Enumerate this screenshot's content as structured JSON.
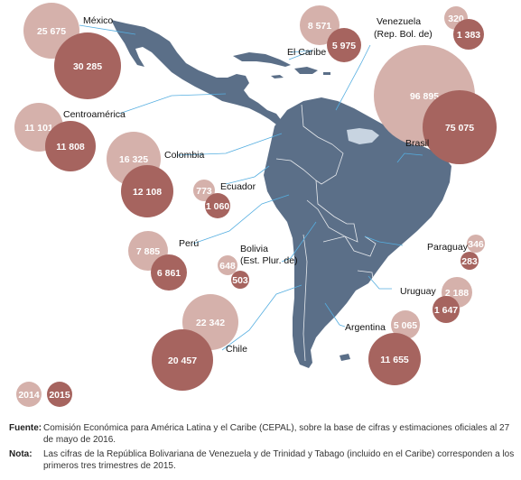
{
  "colors": {
    "y2014": "#d5b1ab",
    "y2015": "#a6645f",
    "land": "#5b6f88",
    "land_light": "#c8d4e1",
    "leader": "#55aee0"
  },
  "legend": {
    "y2014": "2014",
    "y2015": "2015"
  },
  "countries": {
    "mexico": {
      "name": "México",
      "v2014": "25 675",
      "v2015": "30 285"
    },
    "centroamerica": {
      "name": "Centroamérica",
      "v2014": "11 101",
      "v2015": "11 808"
    },
    "el_caribe": {
      "name": "El Caribe",
      "v2014": "8 571",
      "v2015": "5 975"
    },
    "venezuela": {
      "name_line1": "Venezuela",
      "name_line2": "(Rep. Bol. de)",
      "v2014": "320",
      "v2015": "1 383"
    },
    "colombia": {
      "name": "Colombia",
      "v2014": "16 325",
      "v2015": "12 108"
    },
    "ecuador": {
      "name": "Ecuador",
      "v2014": "773",
      "v2015": "1 060"
    },
    "brasil": {
      "name": "Brasil",
      "v2014": "96 895",
      "v2015": "75 075"
    },
    "peru": {
      "name": "Perú",
      "v2014": "7 885",
      "v2015": "6 861"
    },
    "bolivia": {
      "name_line1": "Bolivia",
      "name_line2": "(Est. Plur. de)",
      "v2014": "648",
      "v2015": "503"
    },
    "paraguay": {
      "name": "Paraguay",
      "v2014": "346",
      "v2015": "283"
    },
    "uruguay": {
      "name": "Uruguay",
      "v2014": "2 188",
      "v2015": "1 647"
    },
    "chile": {
      "name": "Chile",
      "v2014": "22 342",
      "v2015": "20 457"
    },
    "argentina": {
      "name": "Argentina",
      "v2014": "5 065",
      "v2015": "11 655"
    }
  },
  "notes": {
    "fuente_label": "Fuente",
    "fuente_text": "Comisión Económica para América Latina y el Caribe (CEPAL), sobre la base de cifras y estimaciones oficiales al 27 de mayo de 2016.",
    "nota_label": "Nota",
    "nota_text": "Las cifras de la República Bolivariana de Venezuela y de Trinidad y Tabago (incluido en el Caribe) corresponden a los primeros tres trimestres de 2015."
  }
}
